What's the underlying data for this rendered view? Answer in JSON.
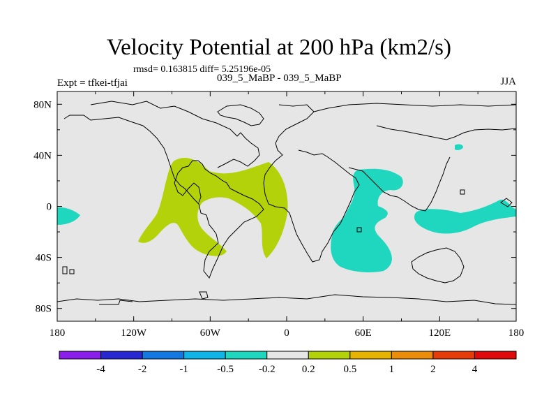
{
  "title": "Velocity Potential at 200 hPa (km2/s)",
  "stats_line": "rmsd= 0.163815 diff= 5.25196e-05",
  "experiment": "Expt = tfkei-tfjai",
  "subtitle": "039_5_MaBP - 039_5_MaBP",
  "season": "JJA",
  "map": {
    "lon_range": [
      -180,
      180
    ],
    "lat_range": [
      -90,
      90
    ],
    "background_color": "#e6e6e6",
    "lon_ticks": [
      {
        "value": -180,
        "label": "180"
      },
      {
        "value": -120,
        "label": "120W"
      },
      {
        "value": -60,
        "label": "60W"
      },
      {
        "value": 0,
        "label": "0"
      },
      {
        "value": 60,
        "label": "60E"
      },
      {
        "value": 120,
        "label": "120E"
      },
      {
        "value": 180,
        "label": "180"
      }
    ],
    "lat_ticks": [
      {
        "value": 80,
        "label": "80N"
      },
      {
        "value": 40,
        "label": "40N"
      },
      {
        "value": 0,
        "label": "0"
      },
      {
        "value": -40,
        "label": "40S"
      },
      {
        "value": -80,
        "label": "80S"
      }
    ],
    "positive_region_color": "#b4d20a",
    "negative_region_color": "#1ed7be"
  },
  "colorbar": {
    "colors": [
      "#8c1eeb",
      "#2828d2",
      "#1478e1",
      "#10b4e6",
      "#1ed7be",
      "#e6e6e6",
      "#b4d20a",
      "#e6b400",
      "#eb8c0a",
      "#e63c0a",
      "#e10a0a"
    ],
    "labels": [
      "-4",
      "-2",
      "-1",
      "-0.5",
      "-0.2",
      "0.2",
      "0.5",
      "1",
      "2",
      "4"
    ]
  }
}
